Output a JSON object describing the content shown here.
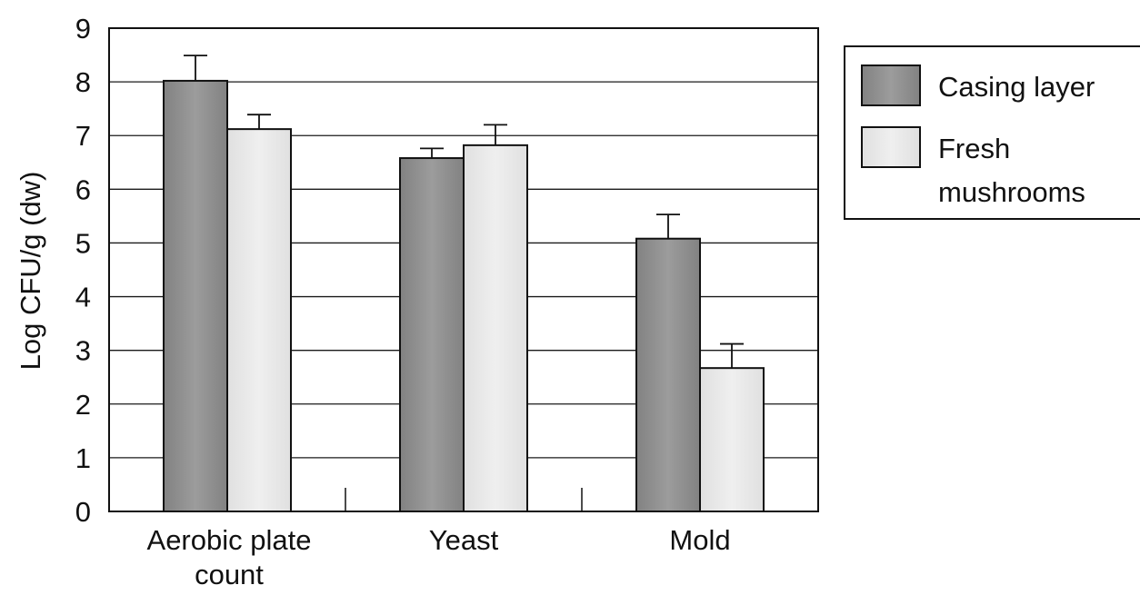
{
  "chart_data": {
    "type": "bar",
    "categories": [
      "Aerobic plate count",
      "Yeast",
      "Mold"
    ],
    "category_lines": [
      [
        "Aerobic plate",
        "count"
      ],
      [
        "Yeast"
      ],
      [
        "Mold"
      ]
    ],
    "series": [
      {
        "name": "Casing layer",
        "values": [
          8.02,
          6.58,
          5.08
        ],
        "errors": [
          0.47,
          0.18,
          0.45
        ],
        "color": "#8f8f8f"
      },
      {
        "name": "Fresh mushrooms",
        "values": [
          7.12,
          6.82,
          2.67
        ],
        "errors": [
          0.27,
          0.38,
          0.45
        ],
        "color": "#e6e6e6"
      }
    ],
    "legend_lines": [
      [
        "Casing layer"
      ],
      [
        "Fresh",
        "mushrooms"
      ]
    ],
    "title": "",
    "xlabel": "",
    "ylabel": "Log CFU/g (dw)",
    "ylim": [
      0,
      9
    ],
    "yticks": [
      "0",
      "1",
      "2",
      "3",
      "4",
      "5",
      "6",
      "7",
      "8",
      "9"
    ],
    "grid": true,
    "legend_position": "right"
  }
}
